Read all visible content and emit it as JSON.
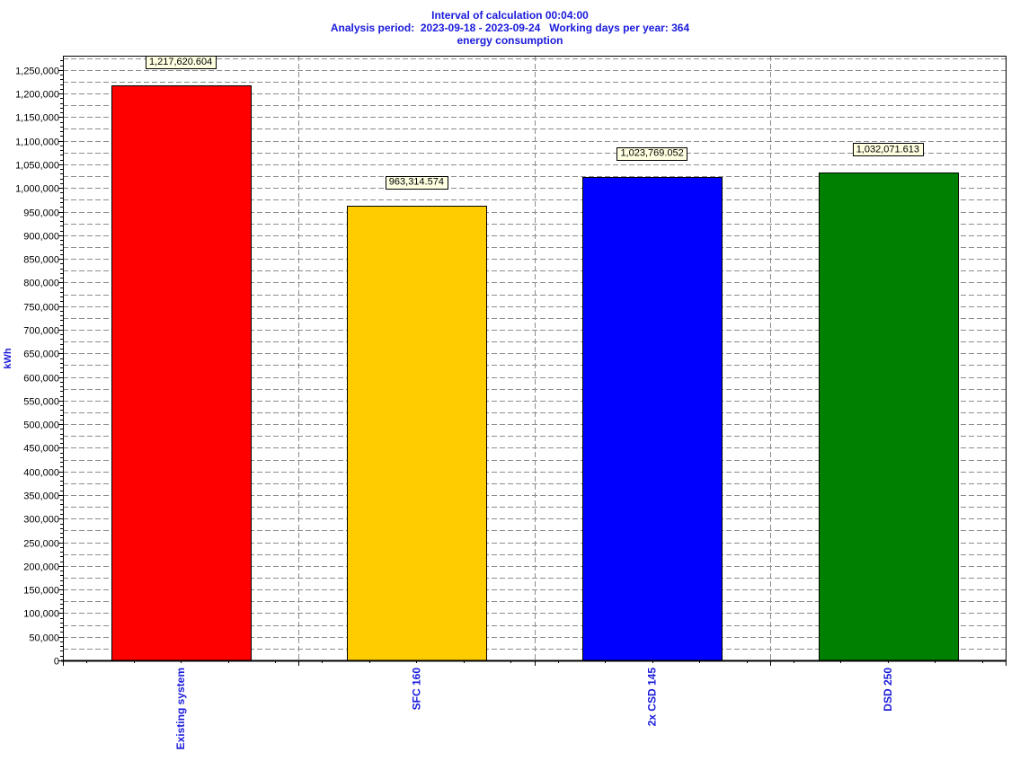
{
  "chart_data": {
    "type": "bar",
    "title_lines": [
      "Interval of calculation 00:04:00",
      "Analysis period:  2023-09-18 - 2023-09-24   Working days per year: 364",
      "energy consumption"
    ],
    "xlabel": "",
    "ylabel": "kWh",
    "categories": [
      "Existing system",
      "SFC 160",
      "2x CSD 145",
      "DSD 250"
    ],
    "values": [
      1217620.604,
      963314.574,
      1023769.052,
      1032071.613
    ],
    "data_labels": [
      "1,217,620.604",
      "963,314.574",
      "1,023,769.052",
      "1,032,071.613"
    ],
    "colors": [
      "#ff0000",
      "#ffcc00",
      "#0000ff",
      "#008000"
    ],
    "ylim": [
      0,
      1280000
    ],
    "yticks": [
      0,
      50000,
      100000,
      150000,
      200000,
      250000,
      300000,
      350000,
      400000,
      450000,
      500000,
      550000,
      600000,
      650000,
      700000,
      750000,
      800000,
      850000,
      900000,
      950000,
      1000000,
      1050000,
      1100000,
      1150000,
      1200000,
      1250000
    ],
    "ytick_labels": [
      "0",
      "50,000",
      "100,000",
      "150,000",
      "200,000",
      "250,000",
      "300,000",
      "350,000",
      "400,000",
      "450,000",
      "500,000",
      "550,000",
      "600,000",
      "650,000",
      "700,000",
      "750,000",
      "800,000",
      "850,000",
      "900,000",
      "950,000",
      "1,000,000",
      "1,050,000",
      "1,100,000",
      "1,150,000",
      "1,200,000",
      "1,250,000"
    ],
    "grid": true,
    "legend": "none",
    "text_color": "#1a1adc",
    "data_label_bg": "#ffffe1"
  }
}
